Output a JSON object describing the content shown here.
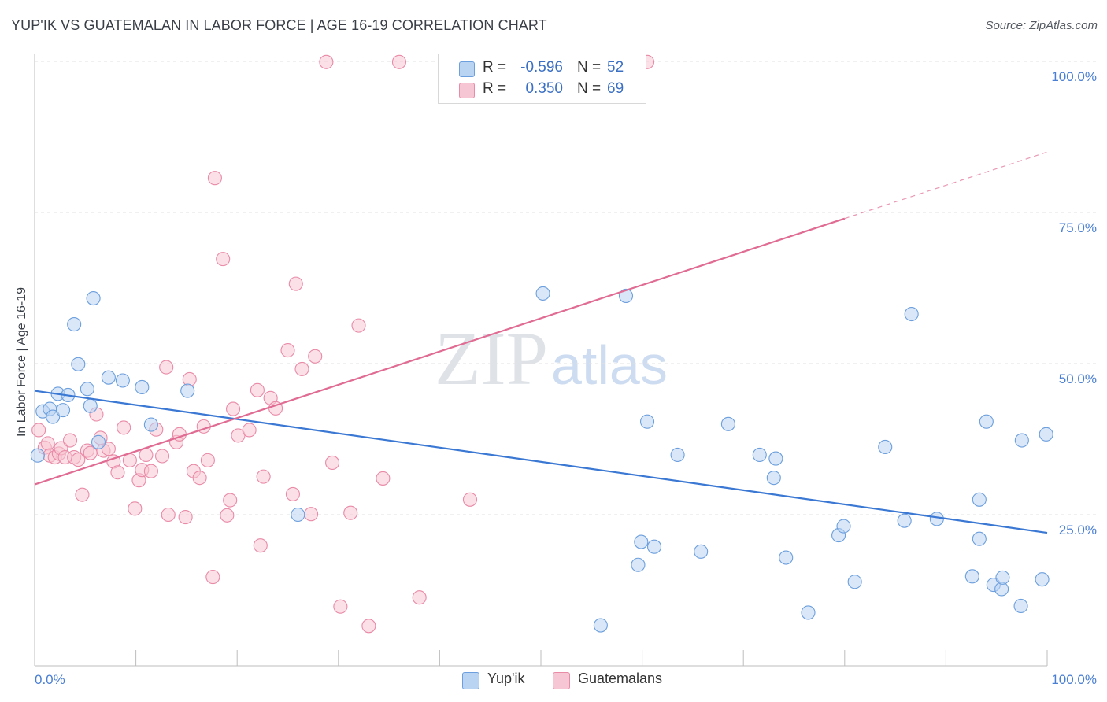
{
  "header": {
    "title": "YUP'IK VS GUATEMALAN IN LABOR FORCE | AGE 16-19 CORRELATION CHART",
    "source": "Source: ZipAtlas.com"
  },
  "watermark": {
    "zip": "ZIP",
    "atlas": "atlas"
  },
  "legend": {
    "rows": [
      {
        "r_label": "R =",
        "r_value": "-0.596",
        "n_label": "N =",
        "n_value": "52"
      },
      {
        "r_label": "R =",
        "r_value": "0.350",
        "n_label": "N =",
        "n_value": "69"
      }
    ]
  },
  "bottom_legend": {
    "series1": "Yup'ik",
    "series2": "Guatemalans"
  },
  "colors": {
    "yupik_fill": "#b9d3f3",
    "yupik_stroke": "#6c9fdd",
    "yupik_line": "#3a78d4",
    "guat_fill": "#f7c6d4",
    "guat_stroke": "#e98aa7",
    "guat_line": "#e06b93",
    "axis_label": "#4a7fd4",
    "grid": "#e2e2e2"
  },
  "chart_data": {
    "type": "scatter",
    "title": "YUP'IK VS GUATEMALAN IN LABOR FORCE | AGE 16-19 CORRELATION CHART",
    "ylabel": "In Labor Force | Age 16-19",
    "xlabel": "",
    "xlim": [
      0,
      100
    ],
    "ylim": [
      0,
      100
    ],
    "x_tick_labels": [
      "0.0%",
      "100.0%"
    ],
    "y_ticks": [
      25,
      50,
      75,
      100
    ],
    "y_tick_labels": [
      "25.0%",
      "50.0%",
      "75.0%",
      "100.0%"
    ],
    "grid": "horizontal dashed",
    "series": [
      {
        "name": "Yup'ik",
        "R": -0.596,
        "N": 52,
        "trend": {
          "x": [
            0,
            100
          ],
          "y": [
            45.5,
            22.0
          ]
        },
        "points": [
          [
            0.3,
            34.8
          ],
          [
            0.8,
            42.1
          ],
          [
            1.5,
            42.5
          ],
          [
            1.8,
            41.2
          ],
          [
            2.3,
            45.0
          ],
          [
            2.8,
            42.3
          ],
          [
            3.3,
            44.8
          ],
          [
            3.9,
            56.5
          ],
          [
            4.3,
            49.9
          ],
          [
            5.2,
            45.8
          ],
          [
            5.5,
            43.0
          ],
          [
            5.8,
            60.8
          ],
          [
            6.3,
            37.0
          ],
          [
            7.3,
            47.7
          ],
          [
            8.7,
            47.2
          ],
          [
            10.6,
            46.1
          ],
          [
            11.5,
            39.9
          ],
          [
            15.1,
            45.5
          ],
          [
            26.0,
            25.0
          ],
          [
            50.2,
            61.6
          ],
          [
            55.9,
            6.7
          ],
          [
            58.4,
            61.2
          ],
          [
            59.6,
            16.7
          ],
          [
            59.9,
            20.5
          ],
          [
            60.5,
            40.4
          ],
          [
            61.2,
            19.7
          ],
          [
            63.5,
            34.9
          ],
          [
            65.8,
            18.9
          ],
          [
            68.5,
            40.0
          ],
          [
            71.6,
            34.9
          ],
          [
            73.0,
            31.1
          ],
          [
            73.2,
            34.3
          ],
          [
            74.2,
            17.9
          ],
          [
            76.4,
            8.8
          ],
          [
            79.4,
            21.6
          ],
          [
            79.9,
            23.1
          ],
          [
            81.0,
            13.9
          ],
          [
            84.0,
            36.2
          ],
          [
            85.9,
            24.0
          ],
          [
            86.6,
            58.2
          ],
          [
            89.1,
            24.3
          ],
          [
            92.6,
            14.8
          ],
          [
            93.3,
            27.5
          ],
          [
            93.3,
            21.0
          ],
          [
            94.0,
            40.4
          ],
          [
            94.7,
            13.4
          ],
          [
            95.5,
            12.7
          ],
          [
            95.6,
            14.6
          ],
          [
            97.4,
            9.9
          ],
          [
            97.5,
            37.3
          ],
          [
            99.5,
            14.3
          ],
          [
            99.9,
            38.3
          ]
        ]
      },
      {
        "name": "Guatemalans",
        "R": 0.35,
        "N": 69,
        "trend": {
          "x": [
            0,
            80
          ],
          "y": [
            30.0,
            74.0
          ]
        },
        "trend_dashed": {
          "x": [
            80,
            100
          ],
          "y": [
            74.0,
            85.0
          ]
        },
        "points": [
          [
            0.4,
            39.0
          ],
          [
            1.0,
            36.1
          ],
          [
            1.3,
            36.8
          ],
          [
            1.5,
            34.8
          ],
          [
            2.0,
            34.5
          ],
          [
            2.4,
            35.1
          ],
          [
            2.6,
            36.0
          ],
          [
            3.0,
            34.5
          ],
          [
            3.5,
            37.3
          ],
          [
            3.9,
            34.5
          ],
          [
            4.3,
            34.1
          ],
          [
            4.7,
            28.3
          ],
          [
            5.2,
            35.6
          ],
          [
            5.5,
            35.2
          ],
          [
            6.1,
            41.6
          ],
          [
            6.5,
            37.7
          ],
          [
            6.8,
            35.6
          ],
          [
            7.3,
            35.9
          ],
          [
            7.8,
            33.8
          ],
          [
            8.2,
            32.0
          ],
          [
            8.8,
            39.4
          ],
          [
            9.4,
            34.0
          ],
          [
            9.9,
            26.0
          ],
          [
            10.3,
            30.7
          ],
          [
            10.6,
            32.4
          ],
          [
            11.0,
            34.9
          ],
          [
            11.5,
            32.2
          ],
          [
            12.0,
            39.1
          ],
          [
            12.6,
            34.7
          ],
          [
            13.0,
            49.4
          ],
          [
            13.2,
            25.0
          ],
          [
            14.0,
            37.0
          ],
          [
            14.3,
            38.3
          ],
          [
            14.9,
            24.6
          ],
          [
            15.3,
            47.4
          ],
          [
            15.7,
            32.2
          ],
          [
            16.3,
            31.1
          ],
          [
            16.7,
            39.6
          ],
          [
            17.1,
            34.0
          ],
          [
            17.6,
            14.7
          ],
          [
            17.8,
            80.7
          ],
          [
            18.6,
            67.3
          ],
          [
            19.0,
            24.9
          ],
          [
            19.3,
            27.4
          ],
          [
            19.6,
            42.5
          ],
          [
            20.1,
            38.1
          ],
          [
            21.2,
            39.0
          ],
          [
            22.0,
            45.6
          ],
          [
            22.3,
            19.9
          ],
          [
            22.6,
            31.3
          ],
          [
            23.3,
            44.3
          ],
          [
            23.8,
            42.6
          ],
          [
            25.0,
            52.2
          ],
          [
            25.5,
            28.4
          ],
          [
            25.8,
            63.2
          ],
          [
            26.4,
            49.1
          ],
          [
            27.3,
            25.1
          ],
          [
            27.7,
            51.2
          ],
          [
            28.8,
            99.9
          ],
          [
            29.4,
            33.6
          ],
          [
            30.2,
            9.8
          ],
          [
            31.2,
            25.3
          ],
          [
            32.0,
            56.3
          ],
          [
            33.0,
            6.6
          ],
          [
            34.4,
            31.0
          ],
          [
            36.0,
            99.9
          ],
          [
            38.0,
            11.3
          ],
          [
            43.0,
            27.5
          ],
          [
            60.5,
            99.9
          ]
        ]
      }
    ]
  }
}
